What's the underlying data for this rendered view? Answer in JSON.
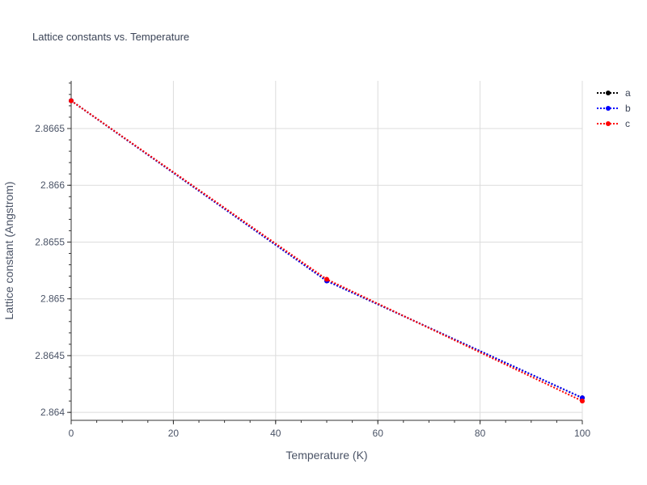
{
  "chart_data": {
    "type": "line",
    "title": "Lattice constants vs. Temperature",
    "xlabel": "Temperature (K)",
    "ylabel": "Lattice constant (Angstrom)",
    "x": [
      0,
      50,
      100
    ],
    "xlim": [
      0,
      100
    ],
    "ylim": [
      2.86393,
      2.86692
    ],
    "xticks": [
      0,
      20,
      40,
      60,
      80,
      100
    ],
    "xtick_labels": [
      "0",
      "20",
      "40",
      "60",
      "80",
      "100"
    ],
    "yticks": [
      2.864,
      2.8645,
      2.865,
      2.8655,
      2.866,
      2.8665
    ],
    "ytick_labels": [
      "2.864",
      "2.8645",
      "2.865",
      "2.8655",
      "2.866",
      "2.8665"
    ],
    "grid": true,
    "legend_position": "top-right",
    "series": [
      {
        "name": "a",
        "values": [
          2.866745,
          2.865158,
          2.864128
        ],
        "color": "#000000",
        "line_style": "dotted",
        "marker": "circle"
      },
      {
        "name": "b",
        "values": [
          2.866745,
          2.865158,
          2.864128
        ],
        "color": "#0000ff",
        "line_style": "dotted",
        "marker": "circle"
      },
      {
        "name": "c",
        "values": [
          2.866745,
          2.865172,
          2.8641
        ],
        "color": "#ff0000",
        "line_style": "dotted",
        "marker": "circle"
      }
    ]
  }
}
